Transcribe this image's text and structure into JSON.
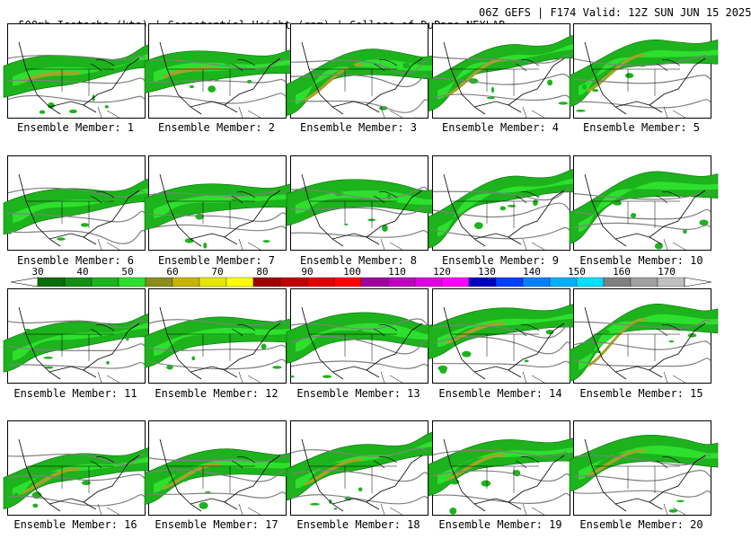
{
  "header": {
    "left": "500mb Isotachs (kts) | Geopotential Height (gpm) | College of DuPage NEXLAB",
    "right": "06Z GEFS | F174 Valid: 12Z SUN JUN 15 2025"
  },
  "colorbar": {
    "labels": [
      "30",
      "40",
      "50",
      "60",
      "70",
      "80",
      "90",
      "100",
      "110",
      "120",
      "130",
      "140",
      "150",
      "160",
      "170"
    ],
    "colors": [
      "#0a6e0a",
      "#138f13",
      "#1cb31c",
      "#2de02d",
      "#8c8c1e",
      "#c8b400",
      "#e6e600",
      "#ffff00",
      "#a00000",
      "#c00000",
      "#e00000",
      "#ff0000",
      "#a000a0",
      "#c000c0",
      "#e000e0",
      "#ff00ff",
      "#0000c0",
      "#0040ff",
      "#0080ff",
      "#00b0ff",
      "#00e0ff",
      "#808080",
      "#a0a0a0",
      "#c0c0c0"
    ]
  },
  "members": [
    {
      "label": "Ensemble Member: 1"
    },
    {
      "label": "Ensemble Member: 2"
    },
    {
      "label": "Ensemble Member: 3"
    },
    {
      "label": "Ensemble Member: 4"
    },
    {
      "label": "Ensemble Member: 5"
    },
    {
      "label": "Ensemble Member: 6"
    },
    {
      "label": "Ensemble Member: 7"
    },
    {
      "label": "Ensemble Member: 8"
    },
    {
      "label": "Ensemble Member: 9"
    },
    {
      "label": "Ensemble Member: 10"
    },
    {
      "label": "Ensemble Member: 11"
    },
    {
      "label": "Ensemble Member: 12"
    },
    {
      "label": "Ensemble Member: 13"
    },
    {
      "label": "Ensemble Member: 14"
    },
    {
      "label": "Ensemble Member: 15"
    },
    {
      "label": "Ensemble Member: 16"
    },
    {
      "label": "Ensemble Member: 17"
    },
    {
      "label": "Ensemble Member: 18"
    },
    {
      "label": "Ensemble Member: 19"
    },
    {
      "label": "Ensemble Member: 20"
    }
  ]
}
